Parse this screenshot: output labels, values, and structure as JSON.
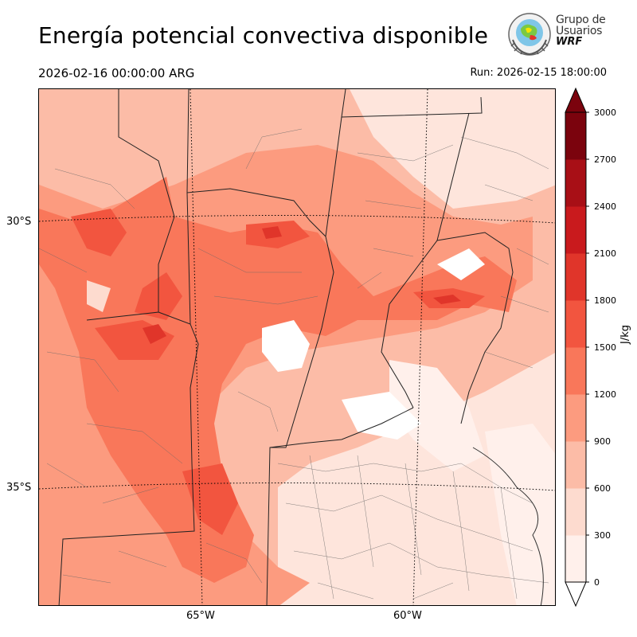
{
  "header": {
    "title": "Energía potencial convectiva disponible",
    "valid_time": "2026-02-16 00:00:00 ARG",
    "run_time": "Run: 2026-02-15 18:00:00"
  },
  "logo": {
    "line1": "Grupo de",
    "line2": "Usuarios",
    "line3": "WRF"
  },
  "map": {
    "lat_labels": [
      "30°S",
      "35°S"
    ],
    "lon_labels": [
      "65°W",
      "60°W"
    ]
  },
  "colorbar": {
    "units": "J/kg",
    "ticks": [
      "0",
      "300",
      "600",
      "900",
      "1200",
      "1500",
      "1800",
      "2100",
      "2400",
      "2700",
      "3000"
    ],
    "colors": [
      "#fff0eb",
      "#fddbcf",
      "#fcbca7",
      "#fc9b7f",
      "#f9775a",
      "#f2553f",
      "#e0352a",
      "#c91a1d",
      "#a80f16",
      "#7b030d"
    ],
    "extend": "both"
  }
}
